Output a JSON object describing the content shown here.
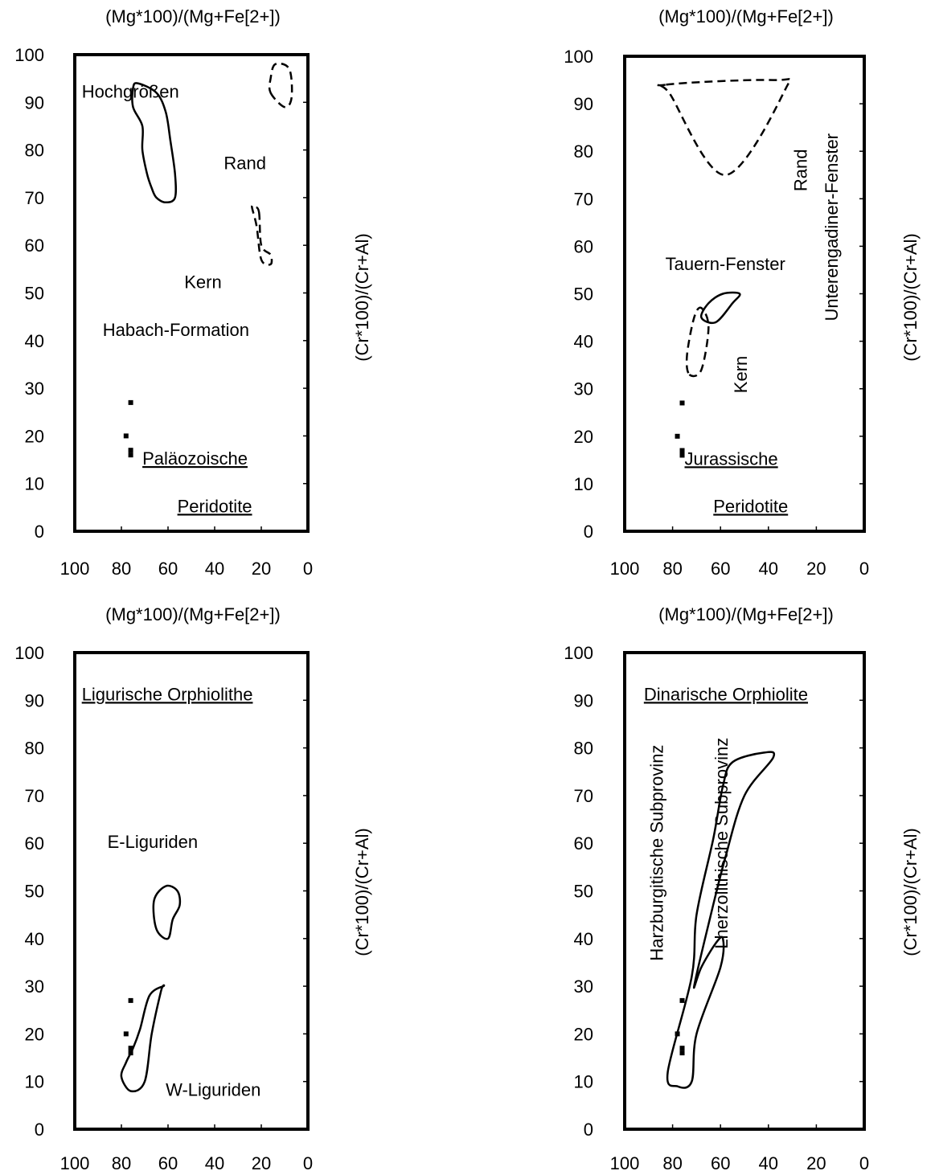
{
  "chart_data": [
    {
      "type": "scatter",
      "panel": "top-left",
      "xlabel": "(Mg*100)/(Mg+Fe[2+])",
      "ylabel": "(Cr*100)/(Cr+Al)",
      "xlim": [
        100,
        0
      ],
      "ylim": [
        0,
        100
      ],
      "x_ticks": [
        "100",
        "80",
        "60",
        "40",
        "20",
        "0"
      ],
      "y_ticks": [
        "0",
        "10",
        "20",
        "30",
        "40",
        "50",
        "60",
        "70",
        "80",
        "90",
        "100"
      ],
      "labels": {
        "hochgroessen": "Hochgrößen",
        "rand": "Rand",
        "kern": "Kern",
        "habach": "Habach-Formation",
        "group1": "Paläozoische",
        "group2": "Peridotite"
      },
      "regions": [
        {
          "name": "Hochgrößen",
          "style": "solid",
          "points": [
            [
              71,
              80
            ],
            [
              69,
              75
            ],
            [
              67,
              72
            ],
            [
              65,
              70
            ],
            [
              61,
              69
            ],
            [
              57,
              70
            ],
            [
              57,
              75
            ],
            [
              59,
              82
            ],
            [
              61,
              88
            ],
            [
              65,
              92
            ],
            [
              73,
              94
            ],
            [
              75,
              93
            ],
            [
              75,
              89
            ],
            [
              71,
              85
            ]
          ]
        },
        {
          "name": "Rand",
          "style": "dashed",
          "points": [
            [
              16,
              92
            ],
            [
              10,
              89
            ],
            [
              7,
              91
            ],
            [
              8,
              97
            ],
            [
              14,
              98
            ],
            [
              16,
              95
            ]
          ]
        },
        {
          "name": "Kern",
          "style": "dashed",
          "points": [
            [
              21,
              67
            ],
            [
              20,
              60
            ],
            [
              16,
              58
            ],
            [
              16,
              56
            ],
            [
              20,
              57
            ],
            [
              22,
              64
            ],
            [
              24,
              68
            ],
            [
              23,
              68
            ]
          ]
        }
      ],
      "markers": [
        [
          76,
          27
        ],
        [
          78,
          20
        ],
        [
          76,
          17
        ],
        [
          76,
          16
        ]
      ]
    },
    {
      "type": "scatter",
      "panel": "top-right",
      "xlabel": "(Mg*100)/(Mg+Fe[2+])",
      "ylabel": "(Cr*100)/(Cr+Al)",
      "xlim": [
        100,
        0
      ],
      "ylim": [
        0,
        100
      ],
      "x_ticks": [
        "100",
        "80",
        "60",
        "40",
        "20",
        "0"
      ],
      "y_ticks": [
        "0",
        "10",
        "20",
        "30",
        "40",
        "50",
        "60",
        "70",
        "80",
        "90",
        "100"
      ],
      "labels": {
        "rand": "Rand",
        "unterengadiner": "Unterengadiner-Fenster",
        "tauern": "Tauern-Fenster",
        "kern": "Kern",
        "group1": "Jurassische",
        "group2": "Peridotite"
      },
      "regions": [
        {
          "name": "Unterengadiner-Fenster Rand",
          "style": "dashed",
          "points": [
            [
              83,
              94
            ],
            [
              81,
              92
            ],
            [
              58,
              75
            ],
            [
              33,
              93
            ],
            [
              38,
              95
            ]
          ]
        },
        {
          "name": "Tauern-Fenster",
          "style": "solid",
          "points": [
            [
              68,
              45
            ],
            [
              62,
              44
            ],
            [
              55,
              48
            ],
            [
              52,
              50
            ],
            [
              59,
              50
            ],
            [
              65,
              48
            ]
          ]
        },
        {
          "name": "Kern",
          "style": "dashed",
          "points": [
            [
              73,
              33
            ],
            [
              68,
              34
            ],
            [
              65,
              43
            ],
            [
              68,
              47
            ],
            [
              71,
              45
            ],
            [
              74,
              37
            ]
          ]
        }
      ],
      "markers": [
        [
          76,
          27
        ],
        [
          78,
          20
        ],
        [
          76,
          17
        ],
        [
          76,
          16
        ]
      ]
    },
    {
      "type": "scatter",
      "panel": "bottom-left",
      "xlabel": "(Mg*100)/(Mg+Fe[2+])",
      "ylabel": "(Cr*100)/(Cr+Al)",
      "xlim": [
        100,
        0
      ],
      "ylim": [
        0,
        100
      ],
      "x_ticks": [
        "100",
        "80",
        "60",
        "40",
        "20",
        "0"
      ],
      "y_ticks": [
        "0",
        "10",
        "20",
        "30",
        "40",
        "50",
        "60",
        "70",
        "80",
        "90",
        "100"
      ],
      "labels": {
        "title": "Ligurische Orphiolithe",
        "e_liguriden": "E-Liguriden",
        "w_liguriden": "W-Liguriden"
      },
      "regions": [
        {
          "name": "E-Liguriden",
          "style": "solid",
          "points": [
            [
              65,
              42
            ],
            [
              66,
              48
            ],
            [
              61,
              51
            ],
            [
              56,
              50
            ],
            [
              55,
              47
            ],
            [
              58,
              44
            ],
            [
              60,
              40
            ]
          ]
        },
        {
          "name": "W-Liguriden",
          "style": "solid",
          "points": [
            [
              78,
              14
            ],
            [
              80,
              11
            ],
            [
              76,
              8
            ],
            [
              70,
              10
            ],
            [
              67,
              20
            ],
            [
              63,
              29
            ],
            [
              62,
              30
            ],
            [
              68,
              28
            ],
            [
              72,
              21
            ],
            [
              75,
              17
            ]
          ]
        }
      ],
      "markers": [
        [
          76,
          27
        ],
        [
          78,
          20
        ],
        [
          76,
          17
        ],
        [
          76,
          16
        ]
      ]
    },
    {
      "type": "scatter",
      "panel": "bottom-right",
      "xlabel": "(Mg*100)/(Mg+Fe[2+])",
      "ylabel": "(Cr*100)/(Cr+Al)",
      "xlim": [
        100,
        0
      ],
      "ylim": [
        0,
        100
      ],
      "x_ticks": [
        "100",
        "80",
        "60",
        "40",
        "20",
        "0"
      ],
      "y_ticks": [
        "0",
        "10",
        "20",
        "30",
        "40",
        "50",
        "60",
        "70",
        "80",
        "90",
        "100"
      ],
      "labels": {
        "title": "Dinarische Orphiolite",
        "harzburgitische": "Harzburgitische Subprovinz",
        "lherzolithische": "Lherzolithische Subprovinz"
      },
      "regions": [
        {
          "name": "Dinarische Orphiolite",
          "style": "solid",
          "points": [
            [
              82,
              12
            ],
            [
              78,
              9
            ],
            [
              72,
              10
            ],
            [
              70,
              20
            ],
            [
              60,
              34
            ],
            [
              59,
              40
            ],
            [
              62,
              39
            ],
            [
              68,
              34
            ],
            [
              71,
              30
            ],
            [
              65,
              43
            ],
            [
              58,
              57
            ],
            [
              50,
              70
            ],
            [
              38,
              78
            ],
            [
              42,
              79
            ],
            [
              55,
              77
            ],
            [
              59,
              72
            ],
            [
              63,
              61
            ],
            [
              70,
              45
            ],
            [
              72,
              32
            ]
          ]
        }
      ],
      "markers": [
        [
          76,
          27
        ],
        [
          78,
          20
        ],
        [
          76,
          17
        ],
        [
          76,
          16
        ]
      ]
    }
  ]
}
